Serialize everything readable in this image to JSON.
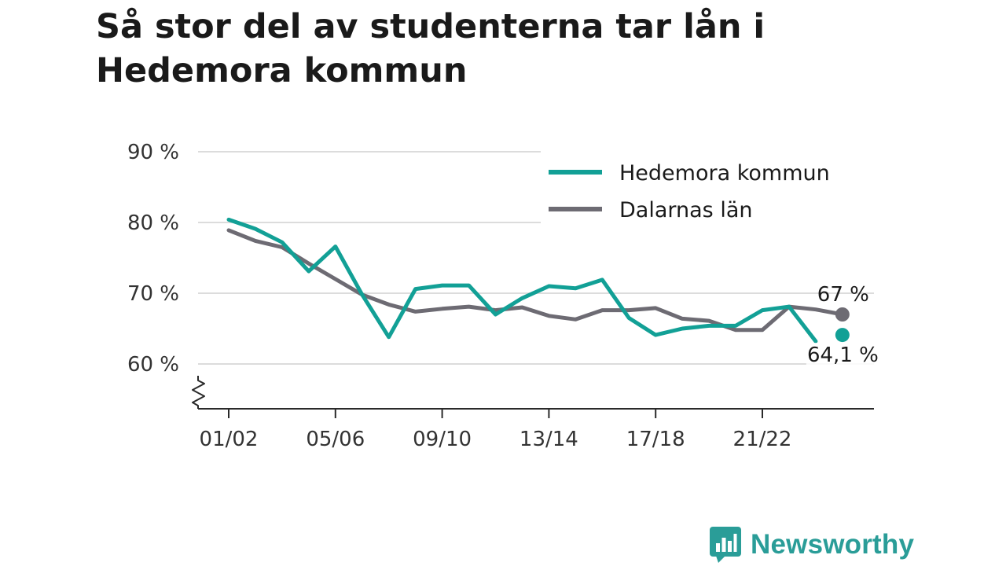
{
  "title": "Så stor del av studenterna tar lån i Hedemora kommun",
  "brand": {
    "name": "Newsworthy",
    "icon": "bar-chart-bubble-icon",
    "color": "#2a9d98"
  },
  "chart_data": {
    "type": "line",
    "title": "Så stor del av studenterna tar lån i Hedemora kommun",
    "xlabel": "",
    "ylabel": "",
    "x": [
      "01/02",
      "02/03",
      "03/04",
      "04/05",
      "05/06",
      "06/07",
      "07/08",
      "08/09",
      "09/10",
      "10/11",
      "11/12",
      "12/13",
      "13/14",
      "14/15",
      "15/16",
      "16/17",
      "17/18",
      "18/19",
      "19/20",
      "20/21",
      "21/22",
      "22/23",
      "23/24",
      "24/25"
    ],
    "x_tick_labels": [
      "01/02",
      "05/06",
      "09/10",
      "13/14",
      "17/18",
      "21/22"
    ],
    "ylim": [
      55,
      90
    ],
    "y_ticks": [
      60,
      70,
      80,
      90
    ],
    "y_tick_labels": [
      "60 %",
      "70 %",
      "80 %",
      "90 %"
    ],
    "axis_break": true,
    "grid": true,
    "legend_position": "top-right",
    "series": [
      {
        "name": "Hedemora kommun",
        "color": "#12a096",
        "values": [
          80.4,
          79.1,
          77.2,
          73.1,
          76.6,
          69.8,
          63.8,
          70.6,
          71.1,
          71.1,
          67.0,
          69.3,
          71.0,
          70.7,
          71.9,
          66.5,
          64.1,
          65.0,
          65.4,
          65.4,
          67.6,
          68.1,
          63.2,
          64.1
        ],
        "gap_before_index": 23,
        "end_label": "64,1 %"
      },
      {
        "name": "Dalarnas län",
        "color": "#6d6b73",
        "values": [
          78.9,
          77.4,
          76.5,
          74.2,
          72.0,
          69.8,
          68.4,
          67.4,
          67.8,
          68.1,
          67.6,
          68.0,
          66.8,
          66.3,
          67.6,
          67.6,
          67.9,
          66.4,
          66.1,
          64.8,
          64.8,
          68.1,
          67.7,
          67.0
        ],
        "end_label": "67 %"
      }
    ]
  }
}
